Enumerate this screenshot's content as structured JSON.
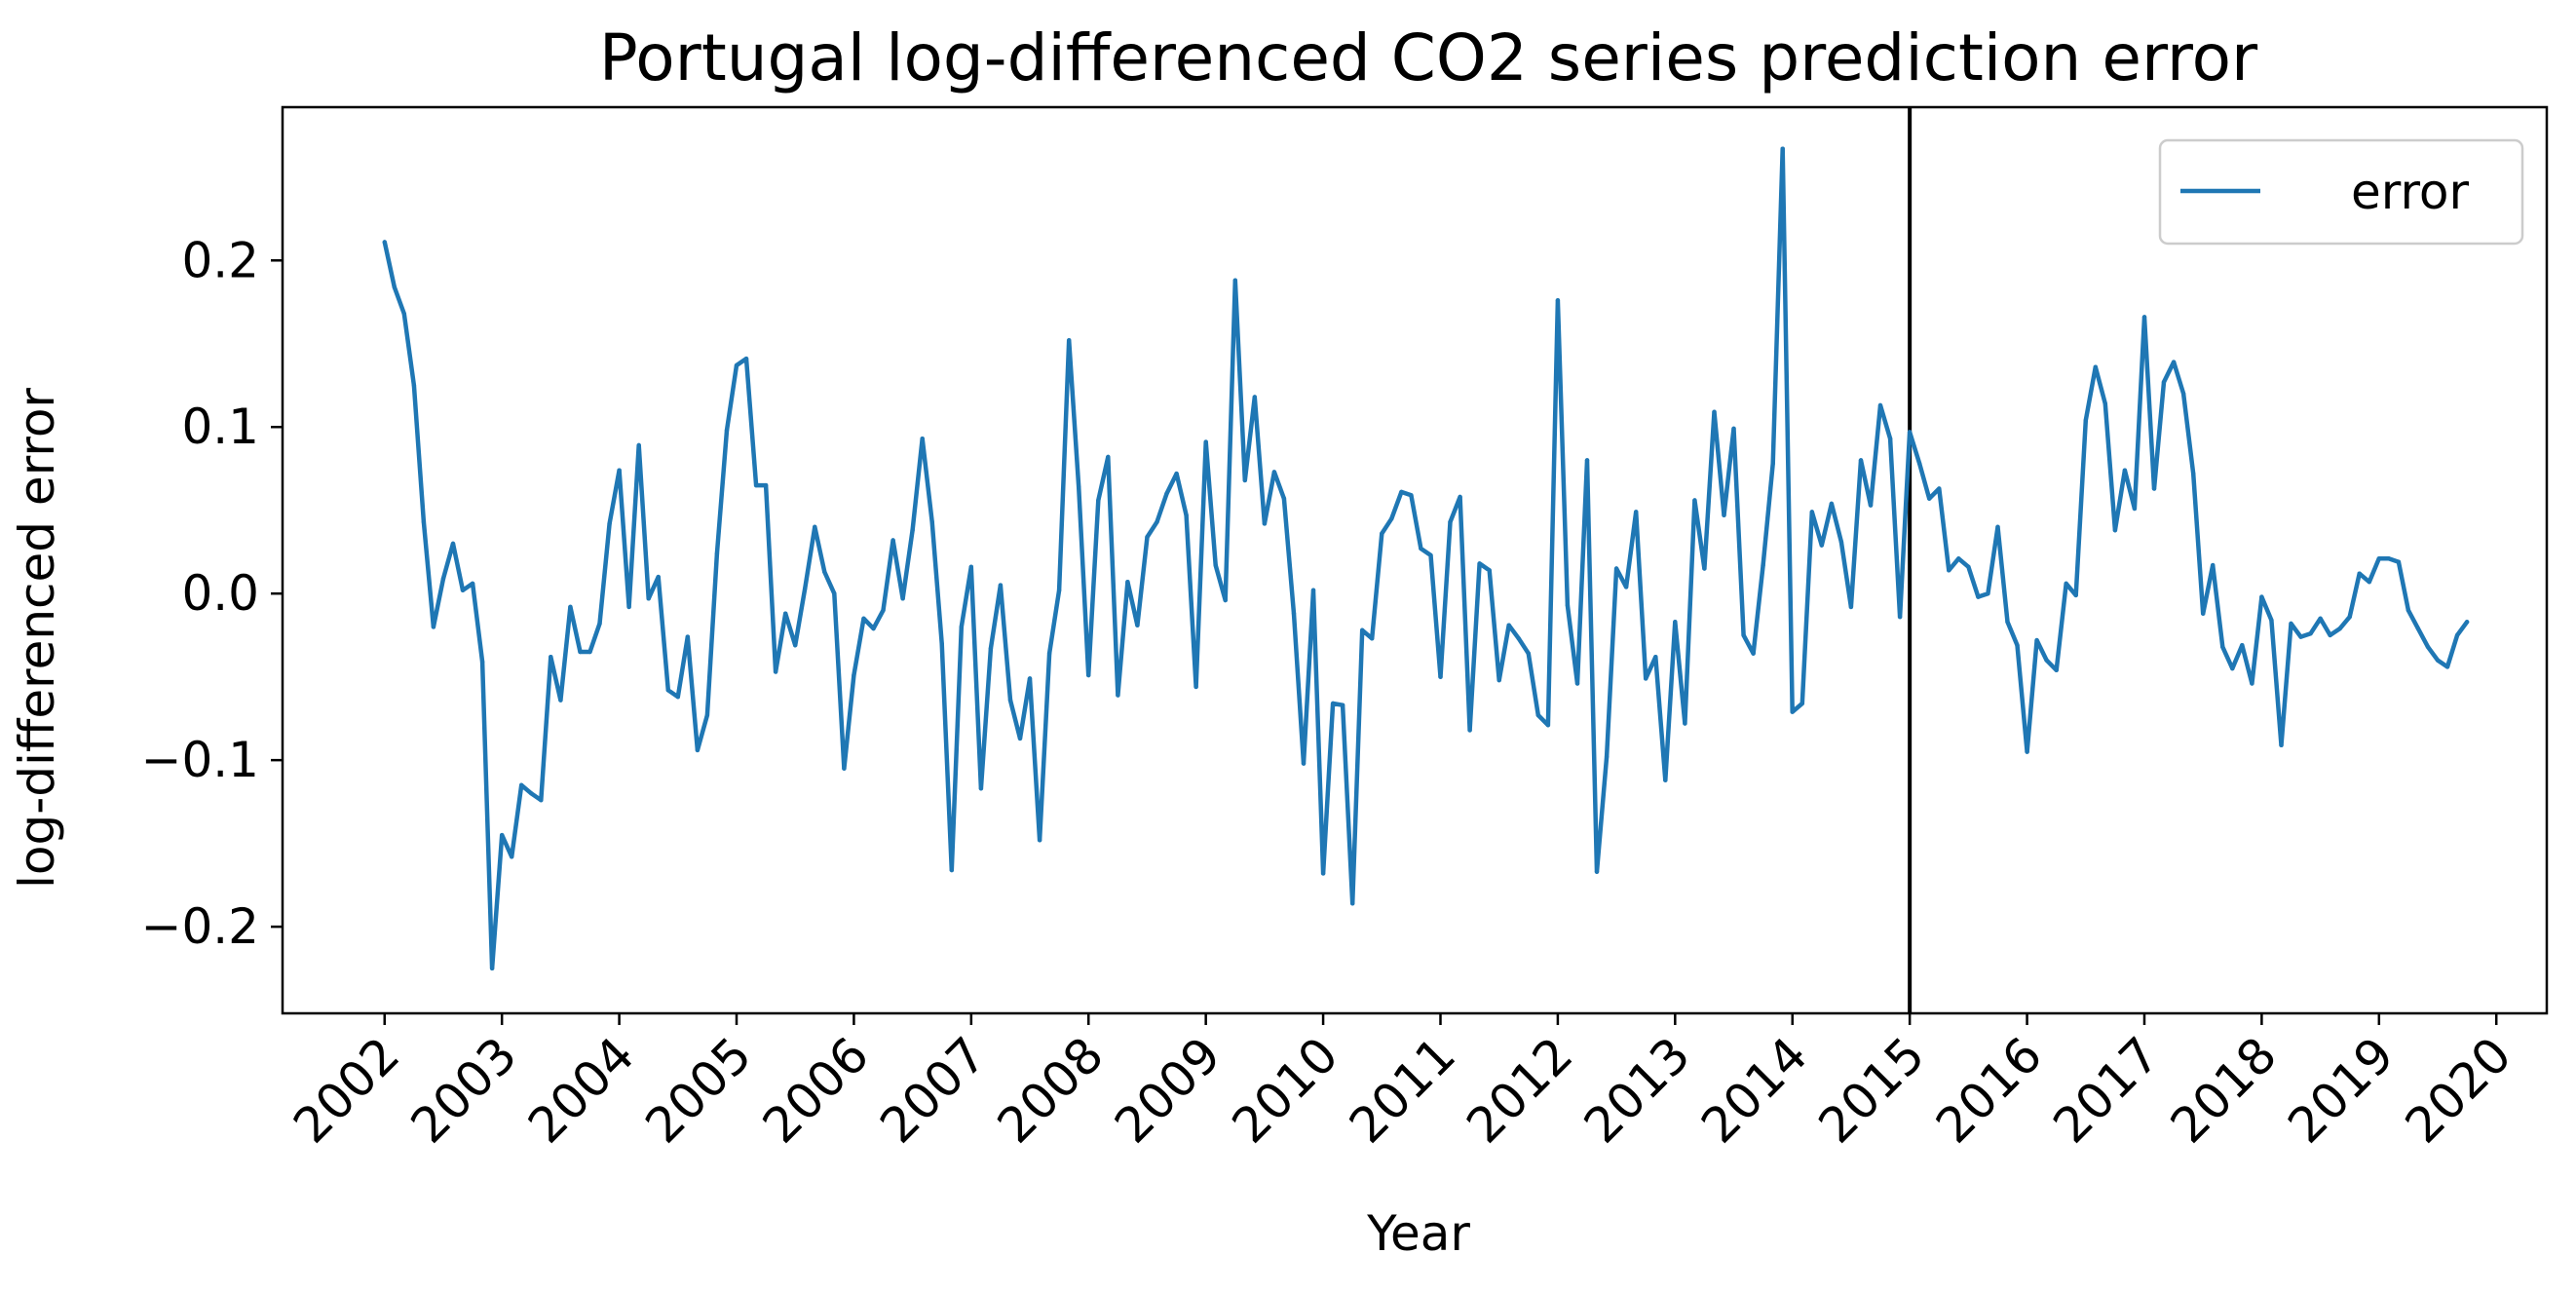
{
  "chart_data": {
    "type": "line",
    "title": "Portugal log-differenced CO2 series prediction error",
    "xlabel": "Year",
    "ylabel": "log-differenced error",
    "x_ticks": [
      "2002",
      "2003",
      "2004",
      "2005",
      "2006",
      "2007",
      "2008",
      "2009",
      "2010",
      "2011",
      "2012",
      "2013",
      "2014",
      "2015",
      "2016",
      "2017",
      "2018",
      "2019",
      "2020"
    ],
    "y_ticks": [
      "0.2",
      "0.1",
      "0.0",
      "−0.1",
      "−0.2"
    ],
    "y_tick_values": [
      0.2,
      0.1,
      0.0,
      -0.1,
      -0.2
    ],
    "xlim": [
      2001.13,
      2020.43
    ],
    "ylim": [
      -0.252,
      0.292
    ],
    "vline_x": 2015.0,
    "grid": false,
    "legend_position": "upper right",
    "series": [
      {
        "name": "error",
        "color": "#1f77b4",
        "x_start": 2002.0,
        "x_step": 0.0833333,
        "values": [
          0.211,
          0.184,
          0.168,
          0.125,
          0.043,
          -0.02,
          0.009,
          0.03,
          0.002,
          0.006,
          -0.041,
          -0.225,
          -0.145,
          -0.158,
          -0.115,
          -0.12,
          -0.124,
          -0.038,
          -0.064,
          -0.008,
          -0.035,
          -0.035,
          -0.018,
          0.042,
          0.074,
          -0.008,
          0.089,
          -0.003,
          0.01,
          -0.058,
          -0.062,
          -0.026,
          -0.094,
          -0.073,
          0.024,
          0.098,
          0.137,
          0.141,
          0.065,
          0.065,
          -0.047,
          -0.012,
          -0.031,
          0.003,
          0.04,
          0.013,
          0.0,
          -0.105,
          -0.049,
          -0.015,
          -0.021,
          -0.01,
          0.032,
          -0.003,
          0.038,
          0.093,
          0.043,
          -0.03,
          -0.166,
          -0.02,
          0.016,
          -0.117,
          -0.033,
          0.005,
          -0.064,
          -0.087,
          -0.051,
          -0.148,
          -0.036,
          0.002,
          0.152,
          0.064,
          -0.049,
          0.056,
          0.082,
          -0.061,
          0.007,
          -0.019,
          0.034,
          0.043,
          0.06,
          0.072,
          0.047,
          -0.056,
          0.091,
          0.017,
          -0.004,
          0.188,
          0.068,
          0.118,
          0.042,
          0.073,
          0.057,
          -0.012,
          -0.102,
          0.002,
          -0.168,
          -0.066,
          -0.067,
          -0.186,
          -0.022,
          -0.027,
          0.036,
          0.045,
          0.061,
          0.059,
          0.027,
          0.023,
          -0.05,
          0.043,
          0.058,
          -0.082,
          0.018,
          0.014,
          -0.052,
          -0.019,
          -0.027,
          -0.036,
          -0.073,
          -0.079,
          0.176,
          -0.007,
          -0.054,
          0.08,
          -0.167,
          -0.098,
          0.015,
          0.004,
          0.049,
          -0.051,
          -0.038,
          -0.112,
          -0.017,
          -0.078,
          0.056,
          0.015,
          0.109,
          0.047,
          0.099,
          -0.025,
          -0.036,
          0.017,
          0.078,
          0.267,
          -0.071,
          -0.066,
          0.049,
          0.029,
          0.054,
          0.031,
          -0.008,
          0.08,
          0.053,
          0.113,
          0.093,
          -0.014,
          0.097,
          0.078,
          0.057,
          0.063,
          0.014,
          0.021,
          0.016,
          -0.002,
          0.0,
          0.04,
          -0.017,
          -0.031,
          -0.095,
          -0.028,
          -0.04,
          -0.046,
          0.006,
          -0.001,
          0.104,
          0.136,
          0.114,
          0.038,
          0.074,
          0.051,
          0.166,
          0.063,
          0.127,
          0.139,
          0.12,
          0.072,
          -0.012,
          0.017,
          -0.032,
          -0.045,
          -0.031,
          -0.054,
          -0.002,
          -0.016,
          -0.091,
          -0.018,
          -0.026,
          -0.024,
          -0.015,
          -0.025,
          -0.021,
          -0.014,
          0.012,
          0.007,
          0.021,
          0.021,
          0.019,
          -0.01,
          -0.021,
          -0.032,
          -0.04,
          -0.044,
          -0.025,
          -0.017
        ]
      }
    ]
  }
}
